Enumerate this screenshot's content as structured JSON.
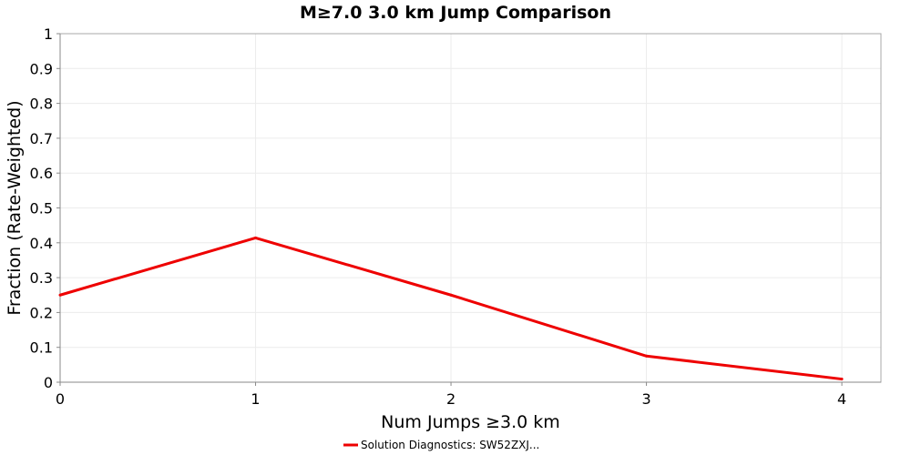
{
  "chart_data": {
    "type": "line",
    "title": "M≥7.0 3.0 km Jump Comparison",
    "xlabel": "Num Jumps ≥3.0 km",
    "ylabel": "Fraction (Rate-Weighted)",
    "xlim": [
      0,
      4.2
    ],
    "ylim": [
      0,
      1
    ],
    "xticks": [
      0,
      1,
      2,
      3,
      4
    ],
    "yticks": [
      0,
      0.1,
      0.2,
      0.3,
      0.4,
      0.5,
      0.6,
      0.7,
      0.8,
      0.9,
      1
    ],
    "xtick_labels": [
      "0",
      "1",
      "2",
      "3",
      "4"
    ],
    "ytick_labels": [
      "0",
      "0.1",
      "0.2",
      "0.3",
      "0.4",
      "0.5",
      "0.6",
      "0.7",
      "0.8",
      "0.9",
      "1"
    ],
    "grid": true,
    "legend_position": "bottom-center",
    "series": [
      {
        "name": "Solution Diagnostics: SW52ZXJ...",
        "color": "#ee0000",
        "x": [
          0,
          1,
          2,
          3,
          4
        ],
        "y": [
          0.25,
          0.414,
          0.25,
          0.075,
          0.009
        ]
      }
    ]
  }
}
